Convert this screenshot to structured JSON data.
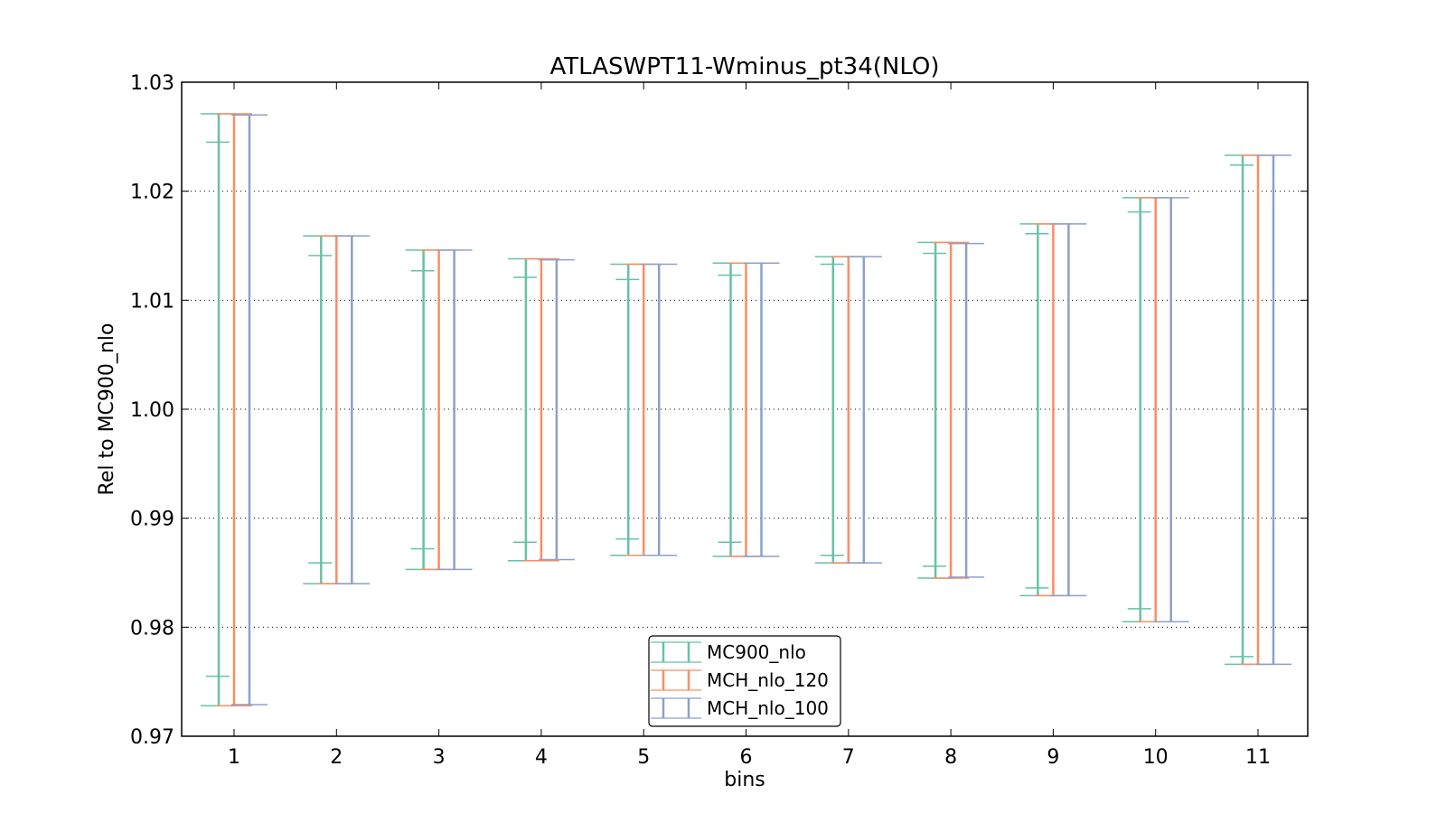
{
  "chart_data": {
    "type": "errorbar",
    "title": "ATLASWPT11-Wminus_pt34(NLO)",
    "xlabel": "bins",
    "ylabel": "Rel to MC900_nlo",
    "ylim": [
      0.97,
      1.03
    ],
    "yticks": [
      "0.97",
      "0.98",
      "0.99",
      "1.00",
      "1.01",
      "1.02",
      "1.03"
    ],
    "categories": [
      "1",
      "2",
      "3",
      "4",
      "5",
      "6",
      "7",
      "8",
      "9",
      "10",
      "11"
    ],
    "grid": "horizontal dotted",
    "legend_position": "bottom-center",
    "series": [
      {
        "name": "MC900_nlo",
        "color": "#66c2a5",
        "upper": [
          1.0271,
          1.0159,
          1.0146,
          1.0138,
          1.0133,
          1.0134,
          1.014,
          1.0153,
          1.017,
          1.0194,
          1.0233
        ],
        "lower": [
          0.9728,
          0.984,
          0.9853,
          0.9861,
          0.9866,
          0.9865,
          0.9859,
          0.9845,
          0.9829,
          0.9805,
          0.9766
        ],
        "inner_upper": [
          1.0245,
          1.0141,
          1.0127,
          1.0121,
          1.0119,
          1.0123,
          1.0133,
          1.0143,
          1.0161,
          1.0181,
          1.0224
        ],
        "inner_lower": [
          0.9755,
          0.9859,
          0.9872,
          0.9878,
          0.9881,
          0.9878,
          0.9866,
          0.9856,
          0.9836,
          0.9817,
          0.9773
        ]
      },
      {
        "name": "MCH_nlo_120",
        "color": "#fc8d62",
        "upper": [
          1.0271,
          1.0159,
          1.0146,
          1.0138,
          1.0133,
          1.0134,
          1.014,
          1.0153,
          1.017,
          1.0194,
          1.0233
        ],
        "lower": [
          0.9728,
          0.984,
          0.9853,
          0.9861,
          0.9866,
          0.9865,
          0.9859,
          0.9845,
          0.9829,
          0.9805,
          0.9766
        ]
      },
      {
        "name": "MCH_nlo_100",
        "color": "#8da0cb",
        "upper": [
          1.027,
          1.0159,
          1.0146,
          1.0137,
          1.0133,
          1.0134,
          1.014,
          1.0152,
          1.017,
          1.0194,
          1.0233
        ],
        "lower": [
          0.9729,
          0.984,
          0.9853,
          0.9862,
          0.9866,
          0.9865,
          0.9859,
          0.9846,
          0.9829,
          0.9805,
          0.9766
        ]
      }
    ]
  }
}
